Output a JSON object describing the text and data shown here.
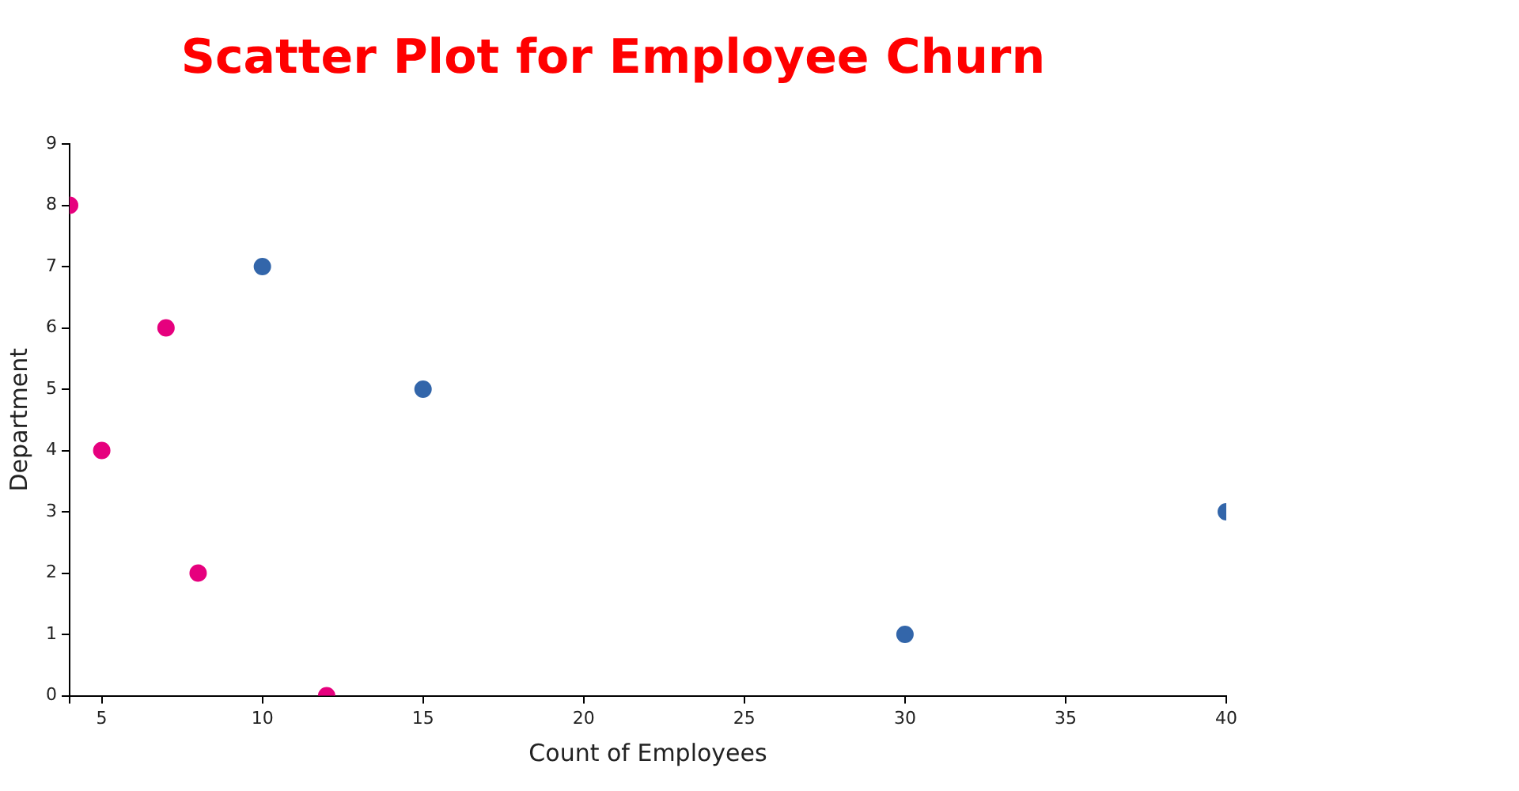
{
  "chart_data": {
    "type": "scatter",
    "title": "Scatter Plot for Employee Churn",
    "xlabel": "Count of Employees",
    "ylabel": "Department",
    "series": [
      {
        "color": "#3366aa",
        "x": [
          10,
          15,
          30,
          40
        ],
        "values": [
          7,
          5,
          1,
          3
        ]
      },
      {
        "color": "#e6007e",
        "x": [
          4,
          5,
          7,
          8,
          12
        ],
        "values": [
          8,
          4,
          6,
          2,
          0
        ]
      }
    ],
    "xlim": [
      4,
      40
    ],
    "xticks": [
      {
        "value": 4,
        "label": null
      },
      5,
      10,
      15,
      20,
      25,
      30,
      35,
      40
    ],
    "ylim": [
      0,
      9
    ],
    "yticks": [
      0,
      1,
      2,
      3,
      4,
      5,
      6,
      7,
      8,
      9
    ],
    "grid": false,
    "legend": false,
    "marker": "circle"
  }
}
